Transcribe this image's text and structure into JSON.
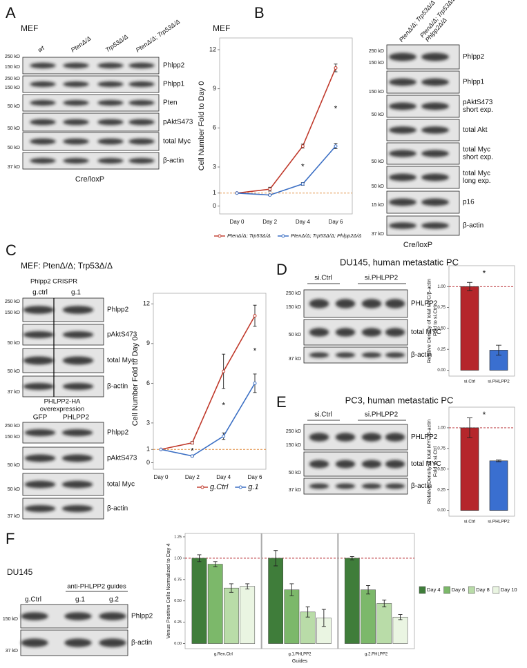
{
  "panels": [
    {
      "label": "A",
      "heading": "MEF",
      "blots": [
        {
          "columns": [
            "wt",
            "PtenΔ/Δ",
            "Trp53Δ/Δ",
            "PtenΔ/Δ; Trp53Δ/Δ"
          ],
          "markers": [
            "250 kD",
            "150 kD",
            "250 kD",
            "150 kD",
            "50 kD",
            "50 kD",
            "50 kD",
            "37 kD"
          ],
          "labels": [
            "Phlpp2",
            "Phlpp1",
            "Pten",
            "pAktS473",
            "total Myc",
            "β-actin"
          ],
          "footer": "Cre/loxP"
        }
      ]
    },
    {
      "label": "B",
      "heading": "MEF",
      "blots": [
        {
          "columns": [
            "PtenΔ/Δ; Trp53Δ/Δ",
            [
              "PtenΔ/Δ; Trp53Δ/Δ;",
              "Phlpp2Δ/Δ"
            ]
          ],
          "markers": [
            "250 kD",
            "150 kD",
            "150 kD",
            "50 kD",
            "50 kD",
            "50 kD",
            "15 kD",
            "37 kD"
          ],
          "labels": [
            "Phlpp2",
            "Phlpp1",
            [
              "pAktS473",
              "short exp."
            ],
            "total Akt",
            [
              "total Myc",
              "short exp."
            ],
            [
              "total Myc",
              "long exp."
            ],
            "p16",
            "β-actin"
          ],
          "footer": "Cre/loxP"
        }
      ]
    },
    {
      "label": "C",
      "heading": "MEF: PtenΔ/Δ; Trp53Δ/Δ",
      "blots": [
        {
          "title": [
            "Phlpp2 CRISPR"
          ],
          "columns": [
            "g.ctrl",
            "g.1"
          ],
          "markers": [
            "250 kD",
            "150 kD",
            "50 kD",
            "50 kD",
            "37 kD"
          ],
          "labels": [
            "Phlpp2",
            "pAktS473",
            "total Myc",
            "β-actin"
          ]
        },
        {
          "title": [
            "PHLPP2-HA",
            "overexpression"
          ],
          "columns": [
            "GFP",
            "PHLPP2"
          ],
          "markers": [
            "250 kD",
            "150 kD",
            "50 kD",
            "50 kD",
            "37 kD"
          ],
          "labels": [
            "Phlpp2",
            "pAktS473",
            "total Myc",
            "β-actin"
          ]
        }
      ]
    },
    {
      "label": "D",
      "heading": "DU145, human metastatic PC",
      "blots": [
        {
          "columns": [
            "si.Ctrl",
            "si.PHLPP2"
          ],
          "markers": [
            "250 kD",
            "150 kD",
            "50 kD",
            "37 kD"
          ],
          "labels": [
            "PHLPP2",
            "total MYC",
            "β-actin"
          ]
        }
      ]
    },
    {
      "label": "E",
      "heading": "PC3, human metastatic PC",
      "blots": [
        {
          "columns": [
            "si.Ctrl",
            "si.PHLPP2"
          ],
          "markers": [
            "250 kD",
            "150 kD",
            "50 kD",
            "37 kD"
          ],
          "labels": [
            "PHLPP2",
            "total MYC",
            "β-actin"
          ]
        }
      ]
    },
    {
      "label": "F",
      "heading": "DU145",
      "blots": [
        {
          "title": [
            "anti-PHLPP2 guides"
          ],
          "columns": [
            "g.Ctrl",
            "g.1",
            "g.2"
          ],
          "markers": [
            "150 kD",
            "37 kD"
          ],
          "labels": [
            "Phlpp2",
            "β-actin"
          ]
        }
      ]
    }
  ],
  "chart_data": [
    {
      "type": "line",
      "y_label": "Cell Number Fold to Day 0",
      "categories": [
        "Day 0",
        "Day 2",
        "Day 4",
        "Day 6"
      ],
      "series": [
        {
          "name": "PtenΔ/Δ; Trp53Δ/Δ",
          "color": "#c0392b",
          "values": [
            1,
            1.3,
            4.6,
            10.6
          ],
          "errors": [
            0,
            0.15,
            0.15,
            0.3
          ]
        },
        {
          "name": "PtenΔ/Δ; Trp53Δ/Δ; Phlpp2Δ/Δ",
          "color": "#3b6fc4",
          "values": [
            1,
            0.85,
            1.7,
            4.6
          ],
          "errors": [
            0,
            0.05,
            0.1,
            0.2
          ]
        }
      ],
      "ylim": [
        -0.6,
        12.9
      ],
      "yticks": [
        0,
        1,
        3,
        6,
        9,
        12
      ],
      "reference_line": 1,
      "annotations": [
        {
          "text": "*",
          "category": "Day 4"
        },
        {
          "text": "*",
          "category": "Day 6"
        }
      ]
    },
    {
      "type": "line",
      "y_label": "Cell Number Fold to Day 0",
      "categories": [
        "Day 0",
        "Day 2",
        "Day 4",
        "Day 6"
      ],
      "series": [
        {
          "name": "g.Ctrl",
          "color": "#c0392b",
          "values": [
            1,
            1.5,
            6.9,
            11.1
          ],
          "errors": [
            0,
            0.1,
            1.3,
            0.8
          ]
        },
        {
          "name": "g.1",
          "color": "#3b6fc4",
          "values": [
            1,
            0.5,
            2.0,
            6.0
          ],
          "errors": [
            0,
            0.05,
            0.25,
            0.7
          ]
        }
      ],
      "ylim": [
        -0.5,
        12.8
      ],
      "yticks": [
        0,
        1,
        3,
        6,
        9,
        12
      ],
      "reference_line": 1,
      "annotations": [
        {
          "text": "*",
          "category": "Day 2"
        },
        {
          "text": "*",
          "category": "Day 4"
        },
        {
          "text": "*",
          "category": "Day 6"
        }
      ]
    },
    {
      "type": "bar",
      "y_label": [
        "Relative Density of total MYC/β-actin",
        "Fold to si.Ctrl"
      ],
      "categories": [
        "si.Ctrl",
        "si.PHLPP2"
      ],
      "values": [
        1,
        0.24
      ],
      "errors": [
        0.05,
        0.06
      ],
      "colors": [
        "#b5262b",
        "#3a6fd0"
      ],
      "ylim": [
        -0.07,
        1.25
      ],
      "yticks": [
        {
          "value": 0,
          "label": "0.00"
        },
        {
          "value": 0.25,
          "label": "0.25"
        },
        {
          "value": 0.5,
          "label": "0.50"
        },
        {
          "value": 0.75,
          "label": "0.75"
        },
        {
          "value": 1,
          "label": "1.00"
        }
      ],
      "reference_line": 1,
      "annotations": [
        {
          "text": "*"
        }
      ]
    },
    {
      "type": "bar",
      "y_label": [
        "Relative Density of total MYC/β-actin",
        "Fold to si.Ctrl"
      ],
      "categories": [
        "si.Ctrl",
        "si.PHLPP2"
      ],
      "values": [
        1,
        0.6
      ],
      "errors": [
        0.12,
        0.01
      ],
      "colors": [
        "#b5262b",
        "#3a6fd0"
      ],
      "ylim": [
        -0.07,
        1.25
      ],
      "yticks": [
        {
          "value": 0,
          "label": "0.00"
        },
        {
          "value": 0.25,
          "label": "0.25"
        },
        {
          "value": 0.5,
          "label": "0.50"
        },
        {
          "value": 0.75,
          "label": "0.75"
        },
        {
          "value": 1,
          "label": "1.00"
        }
      ],
      "reference_line": 1,
      "annotations": [
        {
          "text": "*"
        }
      ]
    },
    {
      "type": "grouped_bar",
      "y_label": "Venus Positive Cells Normalized to Day 4",
      "x_label": "Guides",
      "categories": [
        "g.Ren.Ctrl",
        "g.1.PHLPP2",
        "g.2.PHLPP2"
      ],
      "series": [
        {
          "name": "Day 4",
          "color": "#3f7d3a",
          "values": [
            1,
            1,
            1
          ],
          "errors": [
            0.04,
            0.09,
            0.02
          ]
        },
        {
          "name": "Day 6",
          "color": "#7cb86a",
          "values": [
            0.93,
            0.63,
            0.63
          ],
          "errors": [
            0.03,
            0.07,
            0.05
          ]
        },
        {
          "name": "Day 8",
          "color": "#b9dca8",
          "values": [
            0.65,
            0.37,
            0.47
          ],
          "errors": [
            0.05,
            0.06,
            0.04
          ]
        },
        {
          "name": "Day 10",
          "color": "#eaf5e2",
          "values": [
            0.67,
            0.3,
            0.31
          ],
          "errors": [
            0.03,
            0.1,
            0.03
          ]
        }
      ],
      "ylim": [
        -0.06,
        1.29
      ],
      "yticks": [
        {
          "value": 0,
          "label": "0.00"
        },
        {
          "value": 0.25,
          "label": "0.25"
        },
        {
          "value": 0.5,
          "label": "0.50"
        },
        {
          "value": 0.75,
          "label": "0.75"
        },
        {
          "value": 1,
          "label": "1.00"
        },
        {
          "value": 1.25,
          "label": "1.25"
        }
      ],
      "reference_line": 1,
      "legend": "right"
    }
  ]
}
